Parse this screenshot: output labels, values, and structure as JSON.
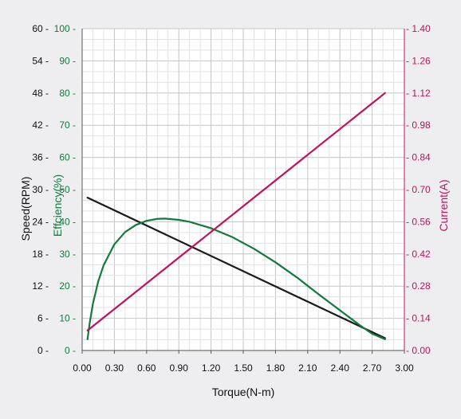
{
  "chart_data": {
    "type": "line",
    "xlabel": "Torque(N-m)",
    "xlim": [
      0,
      3.0
    ],
    "xticks": [
      "0.00",
      "0.30",
      "0.60",
      "0.90",
      "1.20",
      "1.50",
      "1.80",
      "2.10",
      "2.40",
      "2.70",
      "3.00"
    ],
    "y_axes": [
      {
        "id": "speed",
        "label": "Speed(RPM)",
        "color": "#111111",
        "lim": [
          0,
          60
        ],
        "ticks": [
          "0",
          "6",
          "12",
          "18",
          "24",
          "30",
          "36",
          "42",
          "48",
          "54",
          "60"
        ]
      },
      {
        "id": "efficiency",
        "label": "Effciency(%)",
        "color": "#117a3e",
        "lim": [
          0,
          100
        ],
        "ticks": [
          "0",
          "10",
          "20",
          "30",
          "40",
          "50",
          "60",
          "70",
          "80",
          "90",
          "100"
        ]
      },
      {
        "id": "current",
        "label": "Current(A)",
        "color": "#c0105f",
        "lim": [
          0,
          1.4
        ],
        "ticks": [
          "0.00",
          "0.14",
          "0.28",
          "0.42",
          "0.56",
          "0.70",
          "0.84",
          "0.98",
          "1.12",
          "1.26",
          "1.40"
        ]
      }
    ],
    "series": [
      {
        "axis": "speed",
        "color": "#1a1a1a",
        "x": [
          0.05,
          2.82
        ],
        "y": [
          28.5,
          2.3
        ]
      },
      {
        "axis": "efficiency",
        "color": "#117a3e",
        "x": [
          0.05,
          0.07,
          0.1,
          0.15,
          0.2,
          0.3,
          0.4,
          0.5,
          0.6,
          0.7,
          0.77,
          0.9,
          1.0,
          1.2,
          1.4,
          1.6,
          1.8,
          2.0,
          2.2,
          2.4,
          2.6,
          2.7,
          2.82
        ],
        "y": [
          3.5,
          8.5,
          14.5,
          21.5,
          26.5,
          33.0,
          36.8,
          39.0,
          40.3,
          40.9,
          41.0,
          40.6,
          40.0,
          38.0,
          35.2,
          31.6,
          27.4,
          22.7,
          17.5,
          12.5,
          7.5,
          5.2,
          3.5
        ]
      },
      {
        "axis": "current",
        "color": "#c0105f",
        "x": [
          0.05,
          2.82
        ],
        "y": [
          0.087,
          1.12
        ]
      }
    ]
  }
}
